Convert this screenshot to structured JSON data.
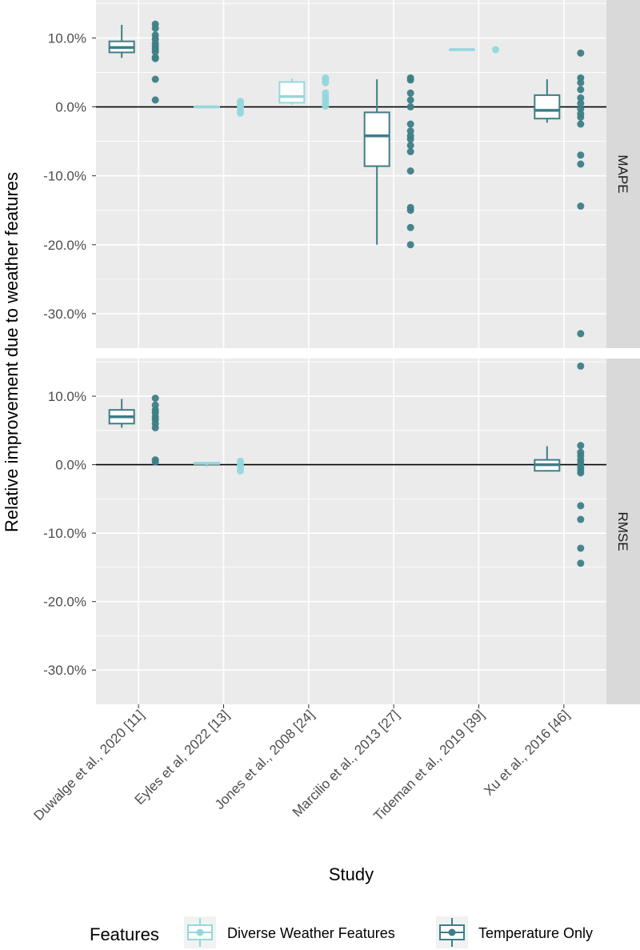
{
  "chart_data": {
    "type": "boxplot",
    "xlabel": "Study",
    "ylabel": "Relative improvement due to weather features",
    "ylim": [
      -35,
      15.5
    ],
    "y_ticks": [
      {
        "value": 10,
        "label": "10.0%"
      },
      {
        "value": 0,
        "label": "0.0%"
      },
      {
        "value": -10,
        "label": "-10.0%"
      },
      {
        "value": -20,
        "label": "-20.0%"
      },
      {
        "value": -30,
        "label": "-30.0%"
      }
    ],
    "categories": [
      "Duwalge et al., 2020 [11]",
      "Eyles et al, 2022 [13]",
      "Jones et al., 2008 [24]",
      "Marcilio et al., 2013 [27]",
      "Tideman et al., 2019 [39]",
      "Xu et al., 2016 [46]"
    ],
    "series_colors": {
      "diverse": "#94d8de",
      "temperature": "#3d7e86"
    },
    "legend": {
      "title": "Features",
      "items": [
        {
          "key": "diverse",
          "label": "Diverse Weather Features"
        },
        {
          "key": "temperature",
          "label": "Temperature Only"
        }
      ]
    },
    "facets": [
      {
        "label": "MAPE",
        "studies": [
          {
            "category": 0,
            "series": "temperature",
            "box": {
              "min": 7.1,
              "q1": 7.9,
              "median": 8.6,
              "q3": 9.5,
              "max": 11.9
            },
            "points": [
              12.0,
              11.4,
              10.4,
              9.8,
              9.2,
              8.8,
              8.4,
              8.0,
              7.2,
              7.0,
              4.0,
              1.0
            ]
          },
          {
            "category": 1,
            "series": "diverse",
            "box": {
              "min": -0.1,
              "q1": -0.05,
              "median": 0.0,
              "q3": 0.05,
              "max": 0.1
            },
            "points": [
              0.8,
              0.4,
              0.0,
              -0.5,
              -0.9
            ]
          },
          {
            "category": 2,
            "series": "diverse",
            "box": {
              "min": 0.3,
              "q1": 0.6,
              "median": 1.5,
              "q3": 3.6,
              "max": 4.1
            },
            "points": [
              4.2,
              3.9,
              3.5,
              2.0,
              1.5,
              1.0,
              0.5,
              0.1
            ]
          },
          {
            "category": 3,
            "series": "temperature",
            "box": {
              "min": -20.0,
              "q1": -8.6,
              "median": -4.2,
              "q3": -0.8,
              "max": 4.0
            },
            "points": [
              4.2,
              3.9,
              2.0,
              1.0,
              0.0,
              -2.5,
              -3.5,
              -4.2,
              -4.7,
              -5.6,
              -6.5,
              -9.3,
              -14.6,
              -15.0,
              -17.5,
              -20.0
            ]
          },
          {
            "category": 4,
            "series": "diverse",
            "box": {
              "min": 8.3,
              "q1": 8.3,
              "median": 8.3,
              "q3": 8.3,
              "max": 8.3
            },
            "points": [
              8.3
            ]
          },
          {
            "category": 5,
            "series": "temperature",
            "box": {
              "min": -2.3,
              "q1": -1.7,
              "median": -0.5,
              "q3": 1.7,
              "max": 4.0
            },
            "points": [
              7.8,
              4.2,
              3.5,
              2.5,
              1.3,
              0.5,
              -0.3,
              -1.0,
              -1.5,
              -2.5,
              -7.0,
              -8.3,
              -14.4,
              -32.9
            ]
          }
        ]
      },
      {
        "label": "RMSE",
        "studies": [
          {
            "category": 0,
            "series": "temperature",
            "box": {
              "min": 5.4,
              "q1": 6.0,
              "median": 7.0,
              "q3": 8.0,
              "max": 9.6
            },
            "points": [
              9.7,
              8.7,
              8.0,
              7.6,
              7.0,
              6.6,
              6.0,
              5.4,
              0.7,
              0.4
            ]
          },
          {
            "category": 1,
            "series": "diverse",
            "box": {
              "min": -0.3,
              "q1": 0.1,
              "median": 0.2,
              "q3": 0.3,
              "max": 0.4
            },
            "points": [
              0.5,
              0.1,
              -0.4,
              -0.9
            ]
          },
          {
            "category": 5,
            "series": "temperature",
            "box": {
              "min": -1.0,
              "q1": -0.9,
              "median": 0.0,
              "q3": 0.7,
              "max": 2.7
            },
            "points": [
              14.4,
              2.8,
              1.8,
              1.3,
              0.7,
              0.2,
              -0.4,
              -0.8,
              -1.2,
              -6.0,
              -8.0,
              -12.2,
              -14.4
            ]
          }
        ]
      }
    ]
  }
}
